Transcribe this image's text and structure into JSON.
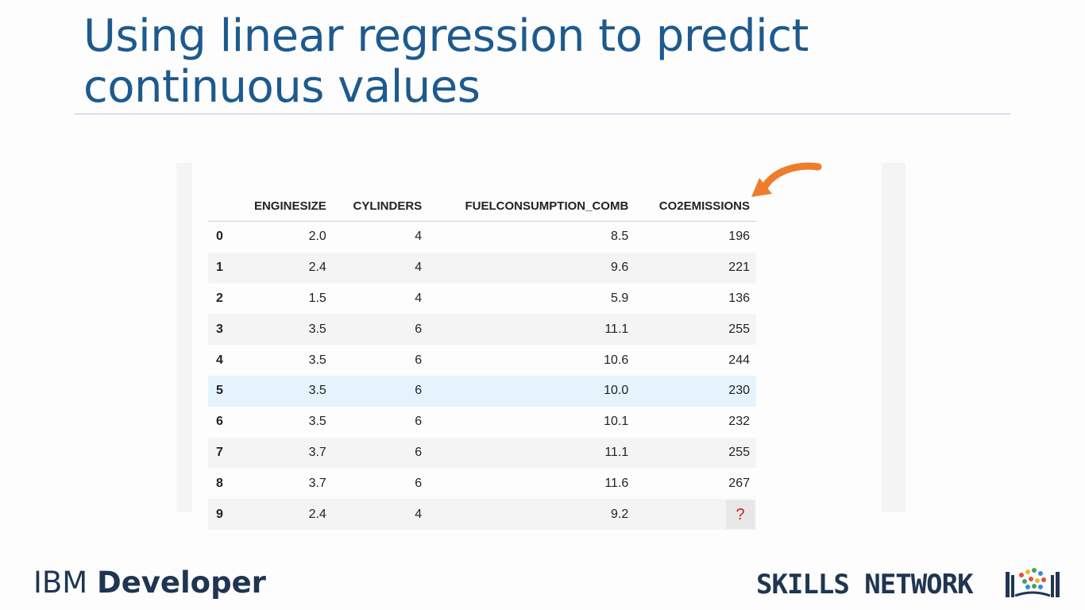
{
  "slide": {
    "title_line1": "Using linear regression to predict",
    "title_line2": "continuous values"
  },
  "table": {
    "columns": [
      "",
      "ENGINESIZE",
      "CYLINDERS",
      "FUELCONSUMPTION_COMB",
      "CO2EMISSIONS"
    ],
    "rows": [
      [
        "0",
        "2.0",
        "4",
        "8.5",
        "196"
      ],
      [
        "1",
        "2.4",
        "4",
        "9.6",
        "221"
      ],
      [
        "2",
        "1.5",
        "4",
        "5.9",
        "136"
      ],
      [
        "3",
        "3.5",
        "6",
        "11.1",
        "255"
      ],
      [
        "4",
        "3.5",
        "6",
        "10.6",
        "244"
      ],
      [
        "5",
        "3.5",
        "6",
        "10.0",
        "230"
      ],
      [
        "6",
        "3.5",
        "6",
        "10.1",
        "232"
      ],
      [
        "7",
        "3.7",
        "6",
        "11.1",
        "255"
      ],
      [
        "8",
        "3.7",
        "6",
        "11.6",
        "267"
      ],
      [
        "9",
        "2.4",
        "4",
        "9.2",
        "?"
      ]
    ],
    "highlight_row": 5
  },
  "footer": {
    "ibm_prefix": "IBM",
    "ibm_word": "Developer",
    "skills_text": "SKILLS NETWORK"
  },
  "colors": {
    "title": "#1d5a8e",
    "arrow": "#ee7d2b",
    "question": "#d21f1f"
  },
  "icons": {
    "arrow": "curved-arrow-icon",
    "logo": "skills-network-book-icon"
  }
}
